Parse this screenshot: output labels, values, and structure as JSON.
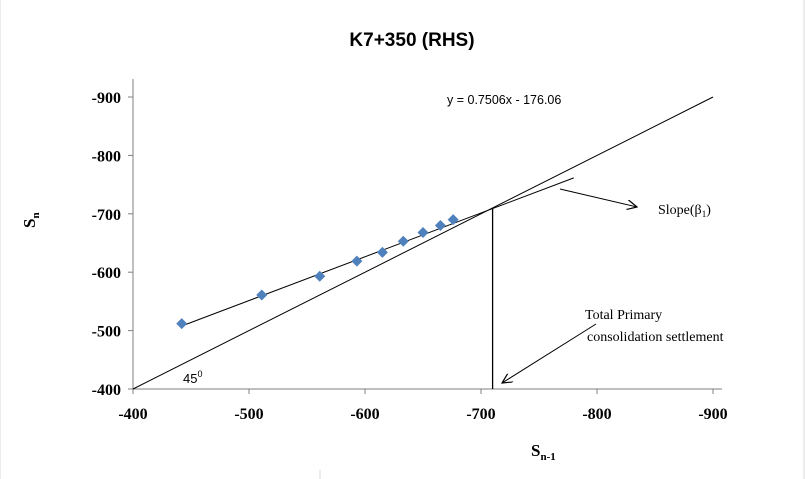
{
  "chart_data": {
    "type": "scatter",
    "title": "K7+350 (RHS)",
    "xlabel": "S",
    "xlabel_sub": "n-1",
    "ylabel": "S",
    "ylabel_sub": "n",
    "xlim": [
      -400,
      -900
    ],
    "ylim": [
      -400,
      -900
    ],
    "x_ticks": [
      -400,
      -500,
      -600,
      -700,
      -800,
      -900
    ],
    "y_ticks": [
      -400,
      -500,
      -600,
      -700,
      -800,
      -900
    ],
    "series": [
      {
        "marker": "diamond",
        "color": "#4f81bd",
        "points": [
          {
            "x": -442,
            "y": -512
          },
          {
            "x": -511,
            "y": -561
          },
          {
            "x": -561,
            "y": -593
          },
          {
            "x": -593,
            "y": -619
          },
          {
            "x": -615,
            "y": -634
          },
          {
            "x": -633,
            "y": -653
          },
          {
            "x": -650,
            "y": -668
          },
          {
            "x": -665,
            "y": -680
          },
          {
            "x": -676,
            "y": -690
          }
        ]
      }
    ],
    "trendline": {
      "equation": "y = 0.7506x - 176.06",
      "slope": 0.7506,
      "intercept": -176.06,
      "x_range": [
        -442,
        -780
      ]
    },
    "reference_line": {
      "label": "45",
      "label_superscript": "0",
      "from": [
        -400,
        -400
      ],
      "to": [
        -900,
        -900
      ]
    },
    "vertical_line": {
      "x": -710,
      "y_from": -400,
      "y_to": -710
    },
    "annotations": {
      "slope_label": "Slope(β",
      "slope_sub": "1",
      "slope_close": ")",
      "total_line1": "Total Primary",
      "total_line2": "consolidation settlement"
    },
    "grid": false,
    "legend": "none"
  }
}
